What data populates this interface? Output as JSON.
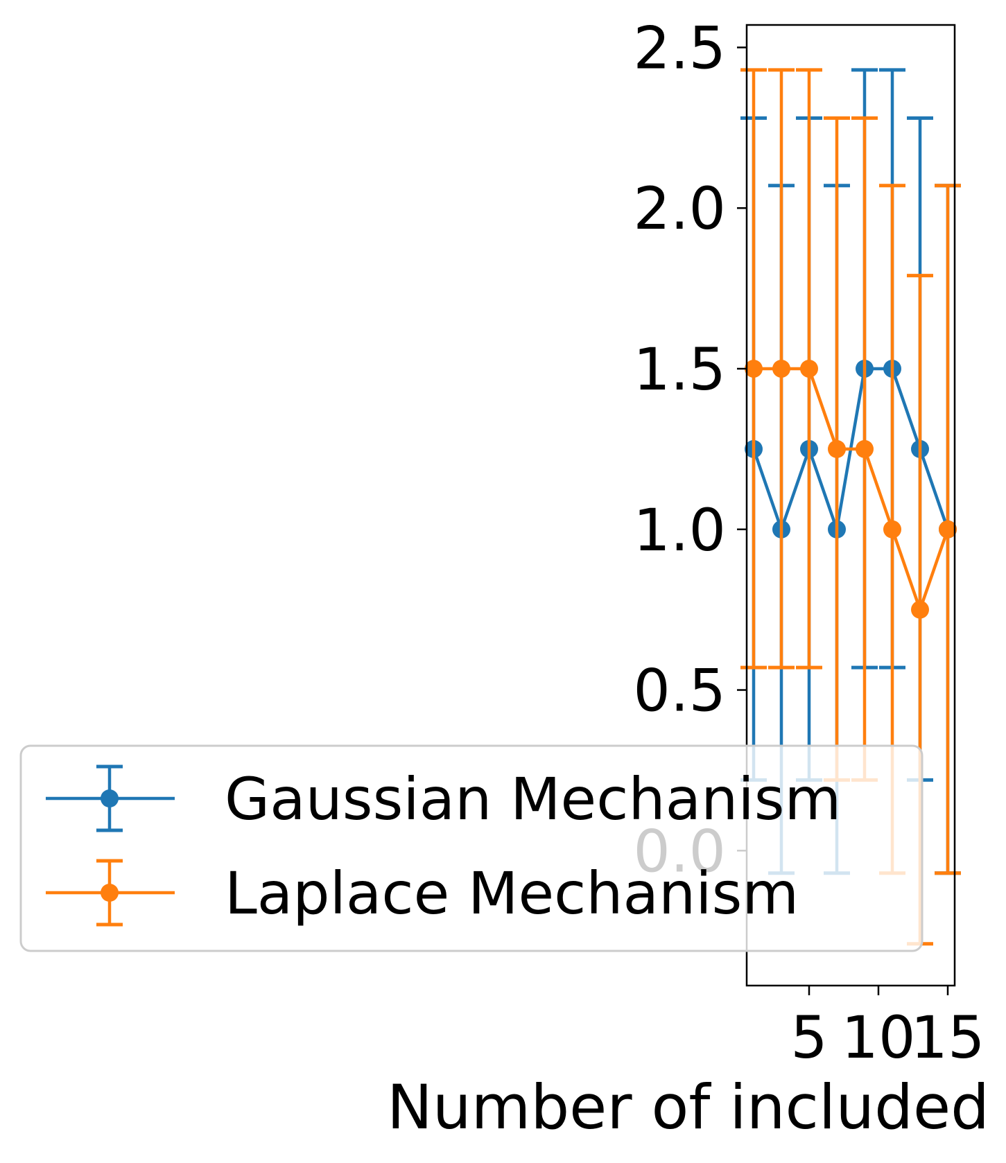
{
  "chart_data": {
    "type": "line",
    "title": "",
    "xlabel": "Number of included",
    "ylabel": "",
    "xlim": [
      0.5,
      15.5
    ],
    "ylim": [
      -0.42,
      2.57
    ],
    "xticks": [
      5,
      10,
      15
    ],
    "yticks": [
      0.0,
      0.5,
      1.0,
      1.5,
      2.0,
      2.5
    ],
    "x": [
      1,
      3,
      5,
      7,
      9,
      11,
      13,
      15
    ],
    "grid": false,
    "legend_position": "lower-left",
    "series": [
      {
        "name": "Gaussian Mechanism",
        "color": "#1f77b4",
        "values": [
          1.25,
          1.0,
          1.25,
          1.0,
          1.5,
          1.5,
          1.25,
          1.0
        ],
        "err_low": [
          0.22,
          -0.07,
          0.22,
          -0.07,
          0.57,
          0.57,
          0.22,
          -0.07
        ],
        "err_high": [
          2.28,
          2.07,
          2.28,
          2.07,
          2.43,
          2.43,
          2.28,
          2.07
        ]
      },
      {
        "name": "Laplace Mechanism",
        "color": "#ff7f0e",
        "values": [
          1.5,
          1.5,
          1.5,
          1.25,
          1.25,
          1.0,
          0.75,
          1.0
        ],
        "err_low": [
          0.57,
          0.57,
          0.57,
          0.22,
          0.22,
          -0.07,
          -0.29,
          -0.07
        ],
        "err_high": [
          2.43,
          2.43,
          2.43,
          2.28,
          2.28,
          2.07,
          1.79,
          2.07
        ]
      }
    ]
  }
}
